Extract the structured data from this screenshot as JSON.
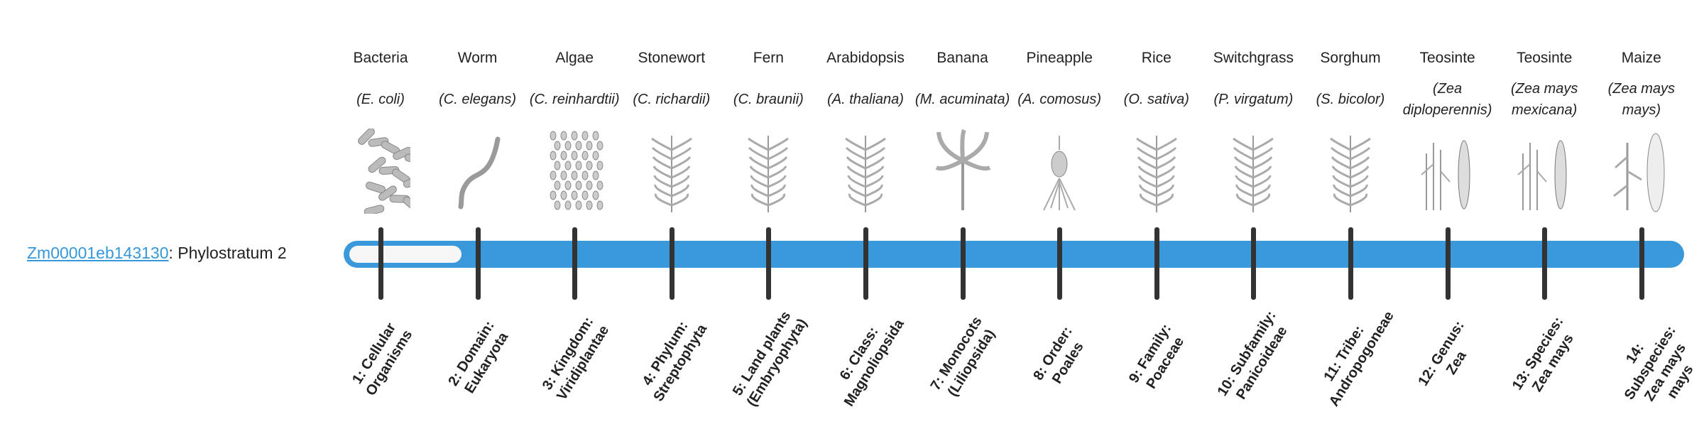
{
  "gene": {
    "id": "Zm00001eb143130",
    "suffix": ": Phylostratum 2"
  },
  "colors": {
    "bar": "#3a99db",
    "fill": "#f6f6f6",
    "tick": "#333333",
    "link": "#3498db"
  },
  "phylostratum_current": 2,
  "organisms": [
    {
      "common": "Bacteria",
      "species": "(E. coli)",
      "icon": "bacteria-icon",
      "stratum": "1: Cellular Organisms"
    },
    {
      "common": "Worm",
      "species": "(C. elegans)",
      "icon": "worm-icon",
      "stratum": "2: Domain: Eukaryota"
    },
    {
      "common": "Algae",
      "species": "(C. reinhardtii)",
      "icon": "algae-icon",
      "stratum": "3: Kingdom: Viridiplantae"
    },
    {
      "common": "Stonewort",
      "species": "(C. richardii)",
      "icon": "stonewort-icon",
      "stratum": "4: Phylum: Streptophyta"
    },
    {
      "common": "Fern",
      "species": "(C. braunii)",
      "icon": "fern-icon",
      "stratum": "5: Land plants (Embryophyta)"
    },
    {
      "common": "Arabidopsis",
      "species": "(A. thaliana)",
      "icon": "arabidopsis-icon",
      "stratum": "6: Class: Magnoliopsida"
    },
    {
      "common": "Banana",
      "species": "(M. acuminata)",
      "icon": "banana-icon",
      "stratum": "7: Monocots (Liliopsida)"
    },
    {
      "common": "Pineapple",
      "species": "(A. comosus)",
      "icon": "pineapple-icon",
      "stratum": "8: Order: Poales"
    },
    {
      "common": "Rice",
      "species": "(O. sativa)",
      "icon": "rice-icon",
      "stratum": "9: Family: Poaceae"
    },
    {
      "common": "Switchgrass",
      "species": "(P. virgatum)",
      "icon": "switchgrass-icon",
      "stratum": "10: Subfamily: Panicoideae"
    },
    {
      "common": "Sorghum",
      "species": "(S. bicolor)",
      "icon": "sorghum-icon",
      "stratum": "11: Tribe: Andropogoneae"
    },
    {
      "common": "Teosinte",
      "species": "(Zea diploperennis)",
      "icon": "teosinte-icon",
      "stratum": "12: Genus: Zea"
    },
    {
      "common": "Teosinte",
      "species": "(Zea mays mexicana)",
      "icon": "teosinte-icon",
      "stratum": "13: Species: Zea mays"
    },
    {
      "common": "Maize",
      "species": "(Zea mays mays)",
      "icon": "maize-icon",
      "stratum": "14: Subspecies: Zea mays mays"
    }
  ]
}
